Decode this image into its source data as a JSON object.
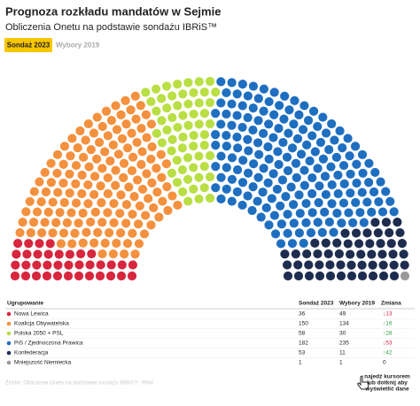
{
  "chart_data": {
    "type": "parliament",
    "title": "Prognoza rozkładu mandatów w Sejmie",
    "subtitle": "Obliczenia Onetu na podstawie sondażu IBRiS™",
    "category_header": "Ugrupowanie",
    "categories": [
      "Nowa Lewica",
      "Koalicja Obywatelska",
      "Polska 2050 + PSL",
      "PiS / Zjednoczona Prawica",
      "Konfederacja",
      "Mniejszość Niemiecka"
    ],
    "colors": [
      "#d7263d",
      "#f4913f",
      "#b9df45",
      "#1f6fc1",
      "#1e2d4f",
      "#9a9a9a"
    ],
    "series": [
      {
        "name": "Sondaż 2023",
        "values": [
          36,
          150,
          58,
          182,
          53,
          1
        ]
      },
      {
        "name": "Wybory 2019",
        "values": [
          49,
          134,
          30,
          235,
          11,
          1
        ]
      }
    ],
    "change": {
      "name": "Zmiana",
      "values": [
        -13,
        16,
        28,
        -53,
        42,
        0
      ],
      "value_labels": [
        "↓13",
        "↑16",
        "↑28",
        "↓53",
        "↑42",
        "0"
      ]
    },
    "source": "Źródło: Obliczenia Onetu na podstawie sondażu IBRiS™, PAW",
    "hint": [
      "najedź kursorem",
      "lub dotknij aby",
      "wyświetlić dane"
    ]
  }
}
